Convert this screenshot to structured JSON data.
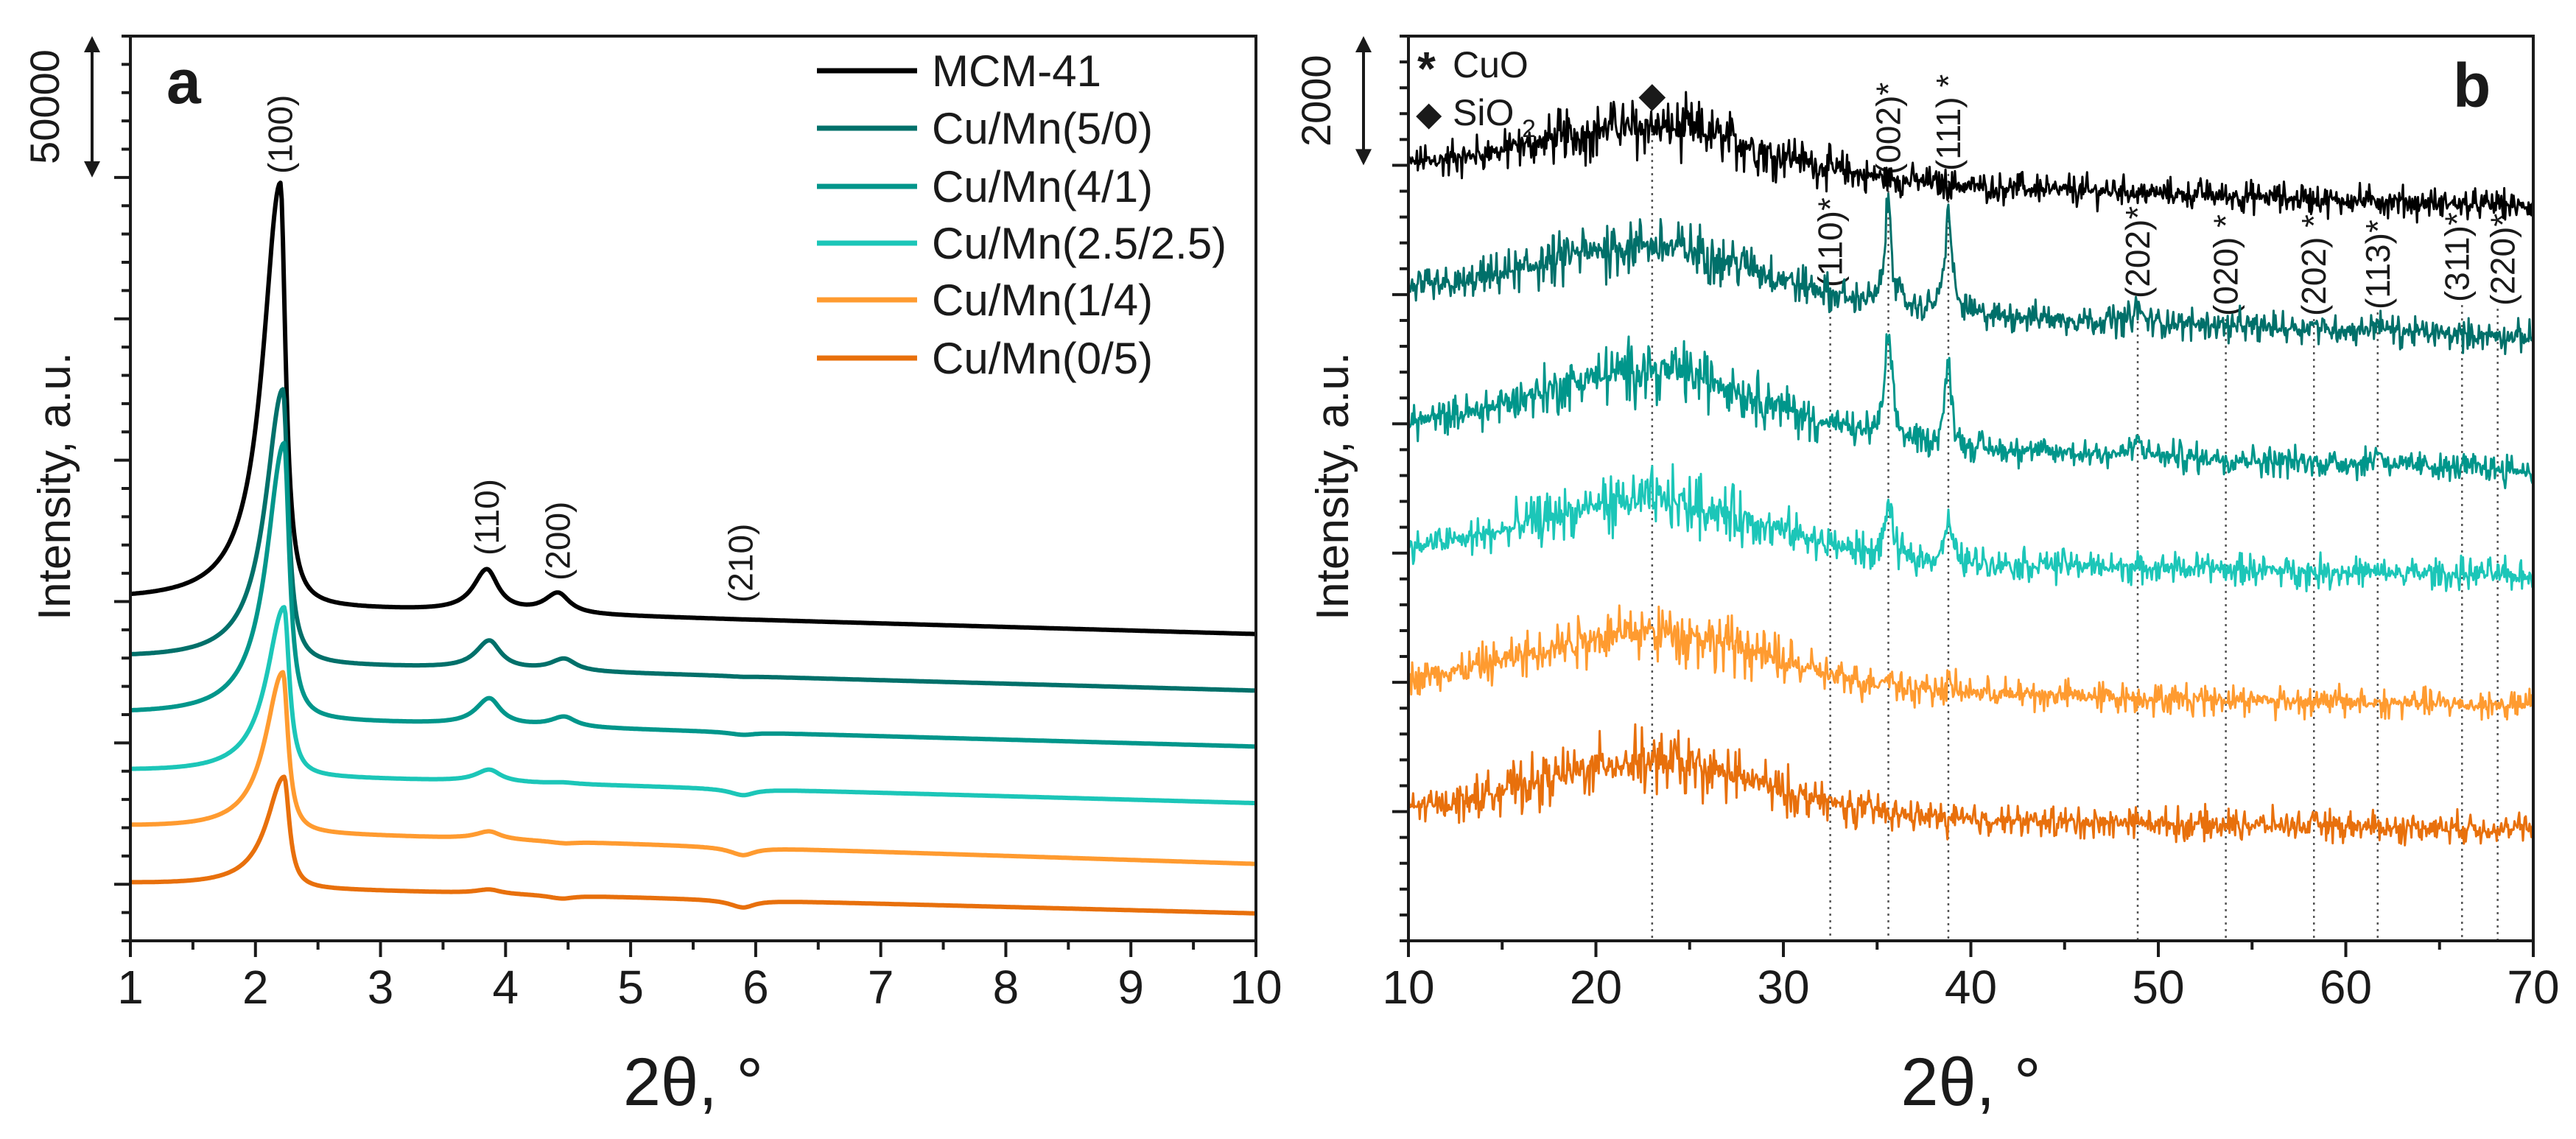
{
  "chart_data": [
    {
      "type": "line",
      "panel_label": "a",
      "xlabel": "2θ, °",
      "ylabel": "Intensity, a.u.",
      "xlim": [
        1,
        10
      ],
      "ylim": [
        0,
        320000
      ],
      "x_ticks": [
        1,
        2,
        3,
        4,
        5,
        6,
        7,
        8,
        9,
        10
      ],
      "x_tick_labels": [
        "1",
        "2",
        "3",
        "4",
        "5",
        "6",
        "7",
        "8",
        "9",
        "10"
      ],
      "y_major_ticks": [
        20000,
        70000,
        120000,
        170000,
        220000,
        270000
      ],
      "scale_bar": {
        "label": "50000",
        "value": 50000
      },
      "legend_position": "top-right",
      "series": [
        {
          "name": "MCM-41",
          "color": "#000000",
          "baseline_start": 119700,
          "baseline_end": 108500,
          "peaks": [
            {
              "x": 2.2,
              "y": 268000
            },
            {
              "x": 3.85,
              "y": 131000
            },
            {
              "x": 4.42,
              "y": 122600
            },
            {
              "x": 5.88,
              "y": 113600
            }
          ]
        },
        {
          "name": "Cu/Mn(5/0)",
          "color": "#00706a",
          "baseline_start": 99500,
          "baseline_end": 88500,
          "peaks": [
            {
              "x": 2.22,
              "y": 195000
            },
            {
              "x": 3.87,
              "y": 106000
            },
            {
              "x": 4.47,
              "y": 99500
            },
            {
              "x": 5.9,
              "y": 93300
            }
          ]
        },
        {
          "name": "Cu/Mn(4/1)",
          "color": "#00968b",
          "baseline_start": 79700,
          "baseline_end": 68700,
          "peaks": [
            {
              "x": 2.23,
              "y": 176000
            },
            {
              "x": 3.87,
              "y": 85600
            },
            {
              "x": 4.47,
              "y": 79000
            },
            {
              "x": 5.9,
              "y": 72800
            }
          ]
        },
        {
          "name": "Cu/Mn(2.5/2.5)",
          "color": "#1cc6b8",
          "baseline_start": 59700,
          "baseline_end": 48700,
          "peaks": [
            {
              "x": 2.23,
              "y": 118000
            },
            {
              "x": 3.87,
              "y": 60500
            },
            {
              "x": 4.47,
              "y": 55900
            },
            {
              "x": 5.9,
              "y": 51500
            }
          ]
        },
        {
          "name": "Cu/Mn(1/4)",
          "color": "#ff9b30",
          "baseline_start": 40000,
          "baseline_end": 27200,
          "peaks": [
            {
              "x": 2.22,
              "y": 95000
            },
            {
              "x": 3.87,
              "y": 38700
            },
            {
              "x": 4.47,
              "y": 34400
            },
            {
              "x": 5.9,
              "y": 30300
            }
          ]
        },
        {
          "name": "Cu/Mn(0/5)",
          "color": "#e8700c",
          "baseline_start": 20000,
          "baseline_end": 9700,
          "peaks": [
            {
              "x": 2.23,
              "y": 58000
            },
            {
              "x": 3.87,
              "y": 18200
            },
            {
              "x": 4.45,
              "y": 14900
            },
            {
              "x": 5.9,
              "y": 11800
            }
          ]
        }
      ],
      "annotations": [
        {
          "text": "(100)",
          "x": 2.2,
          "y": 270000
        },
        {
          "text": "(110)",
          "x": 3.85,
          "y": 134000
        },
        {
          "text": "(200)",
          "x": 4.42,
          "y": 124000
        },
        {
          "text": "(210)",
          "x": 5.88,
          "y": 115500
        }
      ]
    },
    {
      "type": "line",
      "panel_label": "b",
      "xlabel": "2θ, °",
      "ylabel": "Intensity, a.u.",
      "xlim": [
        10,
        70
      ],
      "ylim": [
        0,
        14000
      ],
      "x_ticks": [
        10,
        20,
        30,
        40,
        50,
        60,
        70
      ],
      "x_tick_labels": [
        "10",
        "20",
        "30",
        "40",
        "50",
        "60",
        "70"
      ],
      "y_major_ticks": [
        2000,
        4000,
        6000,
        8000,
        10000,
        12000
      ],
      "scale_bar": {
        "label": "2000",
        "value": 2000
      },
      "legend": [
        {
          "symbol": "*",
          "text": "CuO"
        },
        {
          "symbol": "◆",
          "text": "SiO",
          "subscript": "2"
        }
      ],
      "noise_amplitude": 160,
      "series": [
        {
          "name": "MCM-41",
          "color": "#000000",
          "baseline_start": 11980,
          "baseline_end": 11360,
          "hump": {
            "x": 23,
            "y": 12600
          },
          "peaks": []
        },
        {
          "name": "Cu/Mn(5/0)",
          "color": "#00706a",
          "baseline_start": 10010,
          "baseline_end": 9340,
          "hump": {
            "x": 23,
            "y": 10750
          },
          "peaks": [
            {
              "x": 35.6,
              "y": 11420
            },
            {
              "x": 38.8,
              "y": 11310
            },
            {
              "x": 48.9,
              "y": 9850
            },
            {
              "x": 58.3,
              "y": 9550
            },
            {
              "x": 61.7,
              "y": 9590
            }
          ]
        },
        {
          "name": "Cu/Mn(4/1)",
          "color": "#00968b",
          "baseline_start": 7940,
          "baseline_end": 7280,
          "hump": {
            "x": 23,
            "y": 8830
          },
          "peaks": [
            {
              "x": 35.6,
              "y": 9400
            },
            {
              "x": 38.8,
              "y": 8950
            },
            {
              "x": 48.9,
              "y": 7770
            },
            {
              "x": 61.7,
              "y": 7600
            }
          ]
        },
        {
          "name": "Cu/Mn(2.5/2.5)",
          "color": "#1cc6b8",
          "baseline_start": 6020,
          "baseline_end": 5650,
          "hump": {
            "x": 23,
            "y": 6810
          },
          "peaks": [
            {
              "x": 35.6,
              "y": 6760
            },
            {
              "x": 38.8,
              "y": 6500
            }
          ]
        },
        {
          "name": "Cu/Mn(1/4)",
          "color": "#ff9b30",
          "baseline_start": 4000,
          "baseline_end": 3640,
          "hump": {
            "x": 23,
            "y": 4790
          },
          "peaks": [
            {
              "x": 35.6,
              "y": 4130
            },
            {
              "x": 38.8,
              "y": 4000
            }
          ]
        },
        {
          "name": "Cu/Mn(0/5)",
          "color": "#e8700c",
          "baseline_start": 2000,
          "baseline_end": 1730,
          "hump": {
            "x": 23,
            "y": 2770
          },
          "peaks": []
        }
      ],
      "reference_lines": [
        {
          "x": 23,
          "text": "◆",
          "phase": "SiO2"
        },
        {
          "x": 32.5,
          "text": "(110)*"
        },
        {
          "x": 35.6,
          "text": "(002)*"
        },
        {
          "x": 38.8,
          "text": "(111) *"
        },
        {
          "x": 48.9,
          "text": "(202)*"
        },
        {
          "x": 53.6,
          "text": "(020) *"
        },
        {
          "x": 58.3,
          "text": "(202) *"
        },
        {
          "x": 61.7,
          "text": "(113)*"
        },
        {
          "x": 66.2,
          "text": "(311)*"
        },
        {
          "x": 68.1,
          "text": "(220)*"
        }
      ]
    }
  ]
}
